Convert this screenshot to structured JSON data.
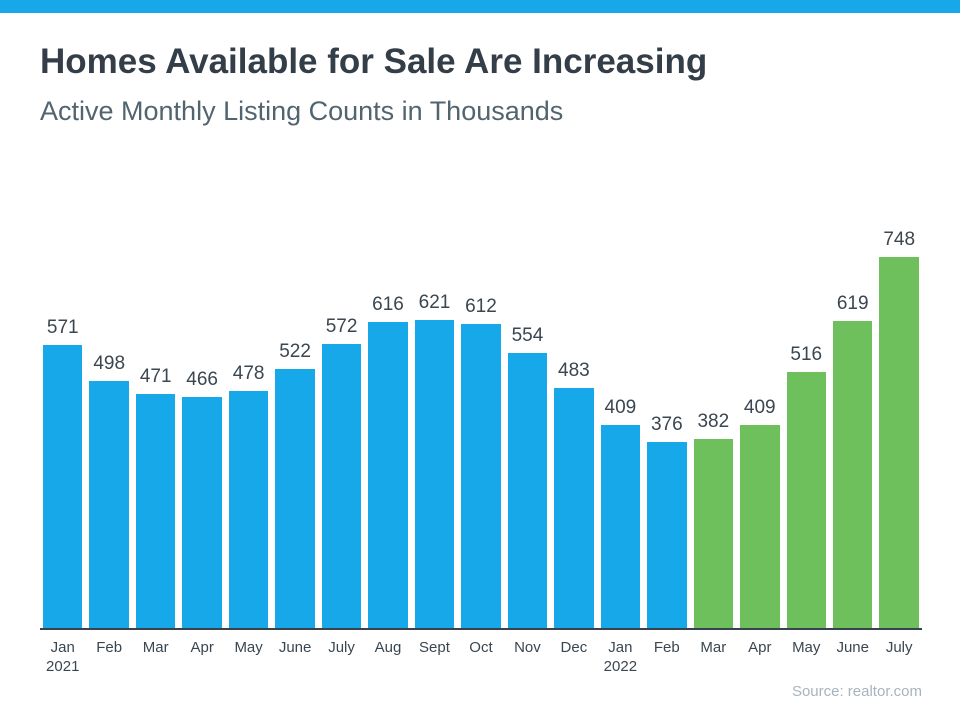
{
  "page": {
    "title": "Homes Available for Sale Are Increasing",
    "subtitle": "Active Monthly Listing Counts in Thousands",
    "source": "Source: realtor.com"
  },
  "colors": {
    "accent_bar": "#17A8EA",
    "bar_blue": "#17A8EA",
    "bar_green": "#6EC05C",
    "title_text": "#333E48",
    "subtitle_text": "#52656F",
    "label_text": "#3A4650",
    "axis_line": "#39434D",
    "source_text": "#A8B4BD"
  },
  "chart_data": {
    "type": "bar",
    "title": "Homes Available for Sale Are Increasing",
    "subtitle": "Active Monthly Listing Counts in Thousands",
    "source": "Source: realtor.com",
    "categories": [
      {
        "month": "Jan",
        "year": "2021"
      },
      {
        "month": "Feb",
        "year": ""
      },
      {
        "month": "Mar",
        "year": ""
      },
      {
        "month": "Apr",
        "year": ""
      },
      {
        "month": "May",
        "year": ""
      },
      {
        "month": "June",
        "year": ""
      },
      {
        "month": "July",
        "year": ""
      },
      {
        "month": "Aug",
        "year": ""
      },
      {
        "month": "Sept",
        "year": ""
      },
      {
        "month": "Oct",
        "year": ""
      },
      {
        "month": "Nov",
        "year": ""
      },
      {
        "month": "Dec",
        "year": ""
      },
      {
        "month": "Jan",
        "year": "2022"
      },
      {
        "month": "Feb",
        "year": ""
      },
      {
        "month": "Mar",
        "year": ""
      },
      {
        "month": "Apr",
        "year": ""
      },
      {
        "month": "May",
        "year": ""
      },
      {
        "month": "June",
        "year": ""
      },
      {
        "month": "July",
        "year": ""
      }
    ],
    "values": [
      571,
      498,
      471,
      466,
      478,
      522,
      572,
      616,
      621,
      612,
      554,
      483,
      409,
      376,
      382,
      409,
      516,
      619,
      748
    ],
    "bar_color_keys": [
      "blue",
      "blue",
      "blue",
      "blue",
      "blue",
      "blue",
      "blue",
      "blue",
      "blue",
      "blue",
      "blue",
      "blue",
      "blue",
      "blue",
      "green",
      "green",
      "green",
      "green",
      "green"
    ],
    "data_labels": true,
    "y_axis": "none",
    "x_axis_line": true,
    "grid": false,
    "legend": "none",
    "ylim": [
      0,
      846
    ]
  }
}
